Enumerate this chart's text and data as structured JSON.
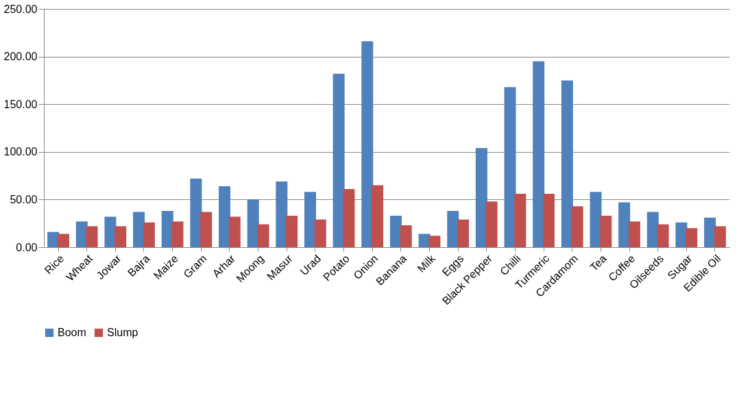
{
  "chart_data": {
    "type": "bar",
    "categories": [
      "Rice",
      "Wheat",
      "Jowar",
      "Bajra",
      "Maize",
      "Gram",
      "Arhar",
      "Moong",
      "Masur",
      "Urad",
      "Potato",
      "Onion",
      "Banana",
      "Milk",
      "Eggs",
      "Black Pepper",
      "Chilli",
      "Turmeric",
      "Cardamom",
      "Tea",
      "Coffee",
      "Oilseeds",
      "Sugar",
      "Edible Oil"
    ],
    "series": [
      {
        "name": "Boom",
        "color": "#4f81bd",
        "values": [
          16,
          27,
          32,
          37,
          38,
          72,
          64,
          50,
          69,
          58,
          182,
          216,
          33,
          14,
          38,
          104,
          168,
          195,
          175,
          58,
          47,
          37,
          26,
          31
        ]
      },
      {
        "name": "Slump",
        "color": "#c0504d",
        "values": [
          14,
          22,
          22,
          26,
          27,
          37,
          32,
          24,
          33,
          29,
          61,
          65,
          23,
          12,
          29,
          48,
          56,
          56,
          43,
          33,
          27,
          24,
          20,
          22
        ]
      }
    ],
    "ylim": [
      0,
      250
    ],
    "yticks": [
      {
        "value": 0,
        "label": "0.00"
      },
      {
        "value": 50,
        "label": "50.00"
      },
      {
        "value": 100,
        "label": "100.00"
      },
      {
        "value": 150,
        "label": "150.00"
      },
      {
        "value": 200,
        "label": "200.00"
      },
      {
        "value": 250,
        "label": "250.00"
      }
    ],
    "grid": "y",
    "legend": "bottom"
  }
}
